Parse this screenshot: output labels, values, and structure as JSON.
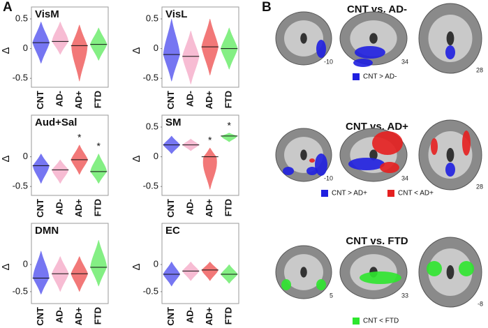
{
  "panel_labels": [
    "A",
    "B"
  ],
  "chart_data": [
    {
      "type": "violin",
      "title": "VisM",
      "y_label": "Δ",
      "categories": [
        "CNT",
        "AD-",
        "AD+",
        "FTD"
      ],
      "colors": [
        "#7676f2",
        "#f7bcd3",
        "#f27878",
        "#84ef84"
      ],
      "label_colors": [
        "#2b2bd9",
        "#eea6c3",
        "#e02626",
        "#2ad62a"
      ],
      "min": [
        -0.25,
        -0.1,
        -0.55,
        -0.2
      ],
      "median": [
        0.1,
        0.12,
        0.05,
        0.07
      ],
      "max": [
        0.45,
        0.45,
        0.4,
        0.35
      ],
      "annotations": [
        null,
        null,
        null,
        null
      ],
      "ylim": [
        -0.65,
        0.7
      ],
      "yticks": [
        0.5,
        0,
        -0.5
      ]
    },
    {
      "type": "violin",
      "title": "VisL",
      "y_label": "Δ",
      "categories": [
        "CNT",
        "AD-",
        "AD+",
        "FTD"
      ],
      "colors": [
        "#7676f2",
        "#f7bcd3",
        "#f27878",
        "#84ef84"
      ],
      "label_colors": [
        "#2b2bd9",
        "#eea6c3",
        "#e02626",
        "#2ad62a"
      ],
      "min": [
        -0.55,
        -0.6,
        -0.45,
        -0.35
      ],
      "median": [
        -0.1,
        -0.13,
        0.03,
        0
      ],
      "max": [
        0.5,
        0.3,
        0.5,
        0.35
      ],
      "annotations": [
        null,
        null,
        null,
        null
      ],
      "ylim": [
        -0.65,
        0.7
      ],
      "yticks": [
        0.5,
        0,
        -0.5
      ]
    },
    {
      "type": "violin",
      "title": "Aud+Sal",
      "y_label": "Δ",
      "categories": [
        "CNT",
        "AD-",
        "AD+",
        "FTD"
      ],
      "colors": [
        "#7676f2",
        "#f7bcd3",
        "#f27878",
        "#84ef84"
      ],
      "label_colors": [
        "#2b2bd9",
        "#eea6c3",
        "#e02626",
        "#2ad62a"
      ],
      "min": [
        -0.45,
        -0.45,
        -0.3,
        -0.45
      ],
      "median": [
        -0.15,
        -0.22,
        -0.05,
        -0.25
      ],
      "max": [
        0.05,
        -0.05,
        0.2,
        0.05
      ],
      "annotations": [
        null,
        null,
        "*",
        "*"
      ],
      "ylim": [
        -0.65,
        0.7
      ],
      "yticks": [
        0,
        -0.5
      ]
    },
    {
      "type": "violin",
      "title": "SM",
      "y_label": "Δ",
      "categories": [
        "CNT",
        "AD-",
        "AD+",
        "FTD"
      ],
      "colors": [
        "#7676f2",
        "#f7bcd3",
        "#f27878",
        "#84ef84"
      ],
      "label_colors": [
        "#2b2bd9",
        "#eea6c3",
        "#e02626",
        "#2ad62a"
      ],
      "min": [
        0.05,
        0.1,
        -0.55,
        0.25
      ],
      "median": [
        0.2,
        0.2,
        0,
        0.35
      ],
      "max": [
        0.35,
        0.3,
        0.15,
        0.4
      ],
      "annotations": [
        null,
        null,
        "*",
        "*"
      ],
      "ylim": [
        -0.65,
        0.7
      ],
      "yticks": [
        0.5,
        0,
        -0.5
      ]
    },
    {
      "type": "violin",
      "title": "DMN",
      "y_label": "Δ",
      "categories": [
        "CNT",
        "AD-",
        "AD+",
        "FTD"
      ],
      "colors": [
        "#7676f2",
        "#f7bcd3",
        "#f27878",
        "#84ef84"
      ],
      "label_colors": [
        "#2b2bd9",
        "#eea6c3",
        "#e02626",
        "#2ad62a"
      ],
      "min": [
        -0.55,
        -0.5,
        -0.5,
        -0.4
      ],
      "median": [
        -0.25,
        -0.17,
        -0.17,
        -0.05
      ],
      "max": [
        0.25,
        0.15,
        0.15,
        0.45
      ],
      "annotations": [
        null,
        null,
        null,
        null
      ],
      "ylim": [
        -0.72,
        0.76
      ],
      "yticks": [
        0,
        -0.5
      ]
    },
    {
      "type": "violin",
      "title": "EC",
      "y_label": "Δ",
      "categories": [
        "CNT",
        "AD-",
        "AD+",
        "FTD"
      ],
      "colors": [
        "#7676f2",
        "#f7bcd3",
        "#f27878",
        "#84ef84"
      ],
      "label_colors": [
        "#2b2bd9",
        "#eea6c3",
        "#e02626",
        "#2ad62a"
      ],
      "min": [
        -0.4,
        -0.3,
        -0.3,
        -0.35
      ],
      "median": [
        -0.18,
        -0.12,
        -0.1,
        -0.18
      ],
      "max": [
        0.05,
        0.05,
        0.05,
        0
      ],
      "annotations": [
        null,
        null,
        null,
        null
      ],
      "ylim": [
        -0.72,
        0.76
      ],
      "yticks": [
        0,
        -0.5
      ]
    }
  ],
  "panel_b": [
    {
      "title": "CNT vs. AD-",
      "slices": [
        "-10",
        "34",
        "28"
      ],
      "legend": [
        {
          "text": "CNT > AD-",
          "color": "#1f1fe0"
        }
      ]
    },
    {
      "title": "CNT vs. AD+",
      "slices": [
        "-10",
        "34",
        "28"
      ],
      "legend": [
        {
          "text": "CNT > AD+",
          "color": "#1f1fe0"
        },
        {
          "text": "CNT < AD+",
          "color": "#e51f1f"
        }
      ]
    },
    {
      "title": "CNT vs. FTD",
      "slices": [
        "5",
        "33",
        "-8"
      ],
      "legend": [
        {
          "text": "CNT < FTD",
          "color": "#2ee62e"
        }
      ]
    }
  ]
}
